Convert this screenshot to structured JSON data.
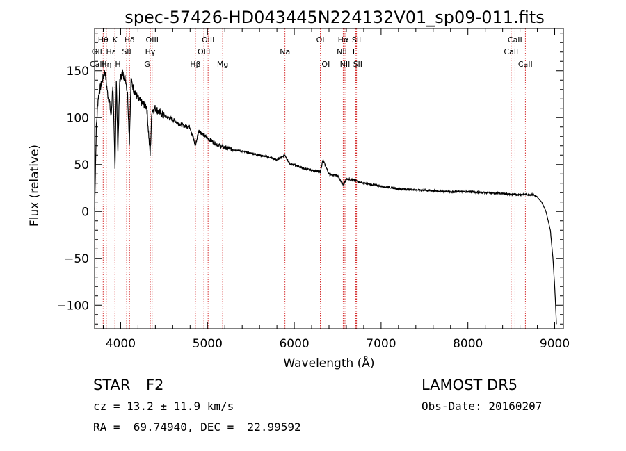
{
  "chart_data": {
    "type": "line",
    "title": "spec-57426-HD043445N224132V01_sp09-011.fits",
    "xlabel": "Wavelength (Å)",
    "ylabel": "Flux (relative)",
    "xlim": [
      3700,
      9100
    ],
    "ylim": [
      -125,
      195
    ],
    "xticks": [
      4000,
      5000,
      6000,
      7000,
      8000,
      9000
    ],
    "yticks": [
      -100,
      -50,
      0,
      50,
      100,
      150
    ],
    "grid": false,
    "series": [
      {
        "x": [
          3700,
          3720,
          3740,
          3760,
          3790,
          3820,
          3850,
          3870,
          3890,
          3910,
          3935,
          3950,
          3968,
          3990,
          4020,
          4060,
          4080,
          4101,
          4120,
          4150,
          4200,
          4250,
          4300,
          4340,
          4360,
          4400,
          4450,
          4500,
          4600,
          4700,
          4800,
          4861,
          4900,
          5000,
          5100,
          5200,
          5300,
          5500,
          5700,
          5800,
          5893,
          5950,
          6000,
          6100,
          6200,
          6300,
          6330,
          6400,
          6500,
          6563,
          6600,
          6700,
          6800,
          7000,
          7200,
          7400,
          7600,
          7800,
          8000,
          8200,
          8400,
          8500,
          8600,
          8700,
          8740,
          8770,
          8800,
          8850,
          8900,
          8950,
          8980,
          9000,
          9010,
          9020
        ],
        "y": [
          2,
          90,
          120,
          130,
          140,
          150,
          125,
          118,
          100,
          135,
          45,
          140,
          65,
          140,
          148,
          140,
          125,
          75,
          140,
          130,
          120,
          115,
          112,
          60,
          108,
          110,
          105,
          102,
          98,
          92,
          90,
          70,
          86,
          78,
          72,
          68,
          66,
          62,
          58,
          55,
          60,
          50,
          50,
          46,
          44,
          42,
          55,
          40,
          38,
          28,
          35,
          33,
          30,
          27,
          24,
          23,
          22,
          21,
          21,
          20,
          19,
          18,
          18,
          18,
          18,
          17,
          15,
          10,
          0,
          -20,
          -50,
          -80,
          -100,
          -120
        ]
      }
    ],
    "spectral_lines": [
      {
        "label": "Hθ",
        "x": 3798,
        "row": 1
      },
      {
        "label": "OII",
        "x": 3727,
        "row": 2
      },
      {
        "label": "CaII",
        "x": 3727,
        "row": 3
      },
      {
        "label": "Hη",
        "x": 3835,
        "row": 3
      },
      {
        "label": "K",
        "x": 3934,
        "row": 1
      },
      {
        "label": "Hε",
        "x": 3889,
        "row": 2
      },
      {
        "label": "H",
        "x": 3969,
        "row": 3
      },
      {
        "label": "Hδ",
        "x": 4102,
        "row": 1
      },
      {
        "label": "SII",
        "x": 4069,
        "row": 2
      },
      {
        "label": "OIII",
        "x": 4363,
        "row": 1
      },
      {
        "label": "Hγ",
        "x": 4341,
        "row": 2
      },
      {
        "label": "G",
        "x": 4305,
        "row": 3
      },
      {
        "label": "Hβ",
        "x": 4861,
        "row": 3
      },
      {
        "label": "OIII",
        "x": 5007,
        "row": 1
      },
      {
        "label": "OIII",
        "x": 4959,
        "row": 2
      },
      {
        "label": "Mg",
        "x": 5175,
        "row": 3
      },
      {
        "label": "Na",
        "x": 5893,
        "row": 2
      },
      {
        "label": "OI",
        "x": 6300,
        "row": 1
      },
      {
        "label": "OI",
        "x": 6363,
        "row": 3
      },
      {
        "label": "Hα",
        "x": 6563,
        "row": 1
      },
      {
        "label": "SII",
        "x": 6717,
        "row": 1
      },
      {
        "label": "NII",
        "x": 6548,
        "row": 2
      },
      {
        "label": "Li",
        "x": 6708,
        "row": 2
      },
      {
        "label": "NII",
        "x": 6584,
        "row": 3
      },
      {
        "label": "SII",
        "x": 6731,
        "row": 3
      },
      {
        "label": "CaII",
        "x": 8542,
        "row": 1
      },
      {
        "label": "CaII",
        "x": 8498,
        "row": 2
      },
      {
        "label": "CaII",
        "x": 8662,
        "row": 3
      }
    ]
  },
  "info": {
    "object_class": "STAR",
    "subclass": "F2",
    "survey": "LAMOST DR5",
    "cz": "cz = 13.2 ± 11.9 km/s",
    "obs_date": "Obs-Date: 20160207",
    "coords": "RA =  69.74940, DEC =  22.99592"
  },
  "colors": {
    "spectrum": "#000000",
    "line_markers": "#cc0000",
    "axes": "#000000"
  }
}
